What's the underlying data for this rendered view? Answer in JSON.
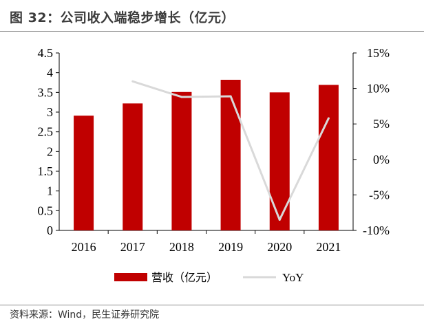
{
  "title": "图 32：公司收入端稳步增长（亿元）",
  "source": "资料来源：Wind，民生证券研究院",
  "chart_data": {
    "type": "bar",
    "categories": [
      "2016",
      "2017",
      "2018",
      "2019",
      "2020",
      "2021"
    ],
    "series": [
      {
        "name": "营收（亿元）",
        "type": "bar",
        "axis": "left",
        "color": "#c00000",
        "values": [
          2.91,
          3.22,
          3.51,
          3.82,
          3.5,
          3.69
        ]
      },
      {
        "name": "YoY",
        "type": "line",
        "axis": "right",
        "color": "#d9d9d9",
        "values": [
          null,
          11.0,
          8.8,
          8.9,
          -8.5,
          5.8
        ]
      }
    ],
    "y_left": {
      "ylim": [
        0,
        4.5
      ],
      "ticks": [
        "0",
        "0.5",
        "1",
        "1.5",
        "2",
        "2.5",
        "3",
        "3.5",
        "4",
        "4.5"
      ]
    },
    "y_right": {
      "ylim": [
        -10,
        15
      ],
      "ticks": [
        "-10%",
        "-5%",
        "0%",
        "5%",
        "10%",
        "15%"
      ]
    },
    "legend": {
      "position": "bottom"
    },
    "grid": false
  }
}
